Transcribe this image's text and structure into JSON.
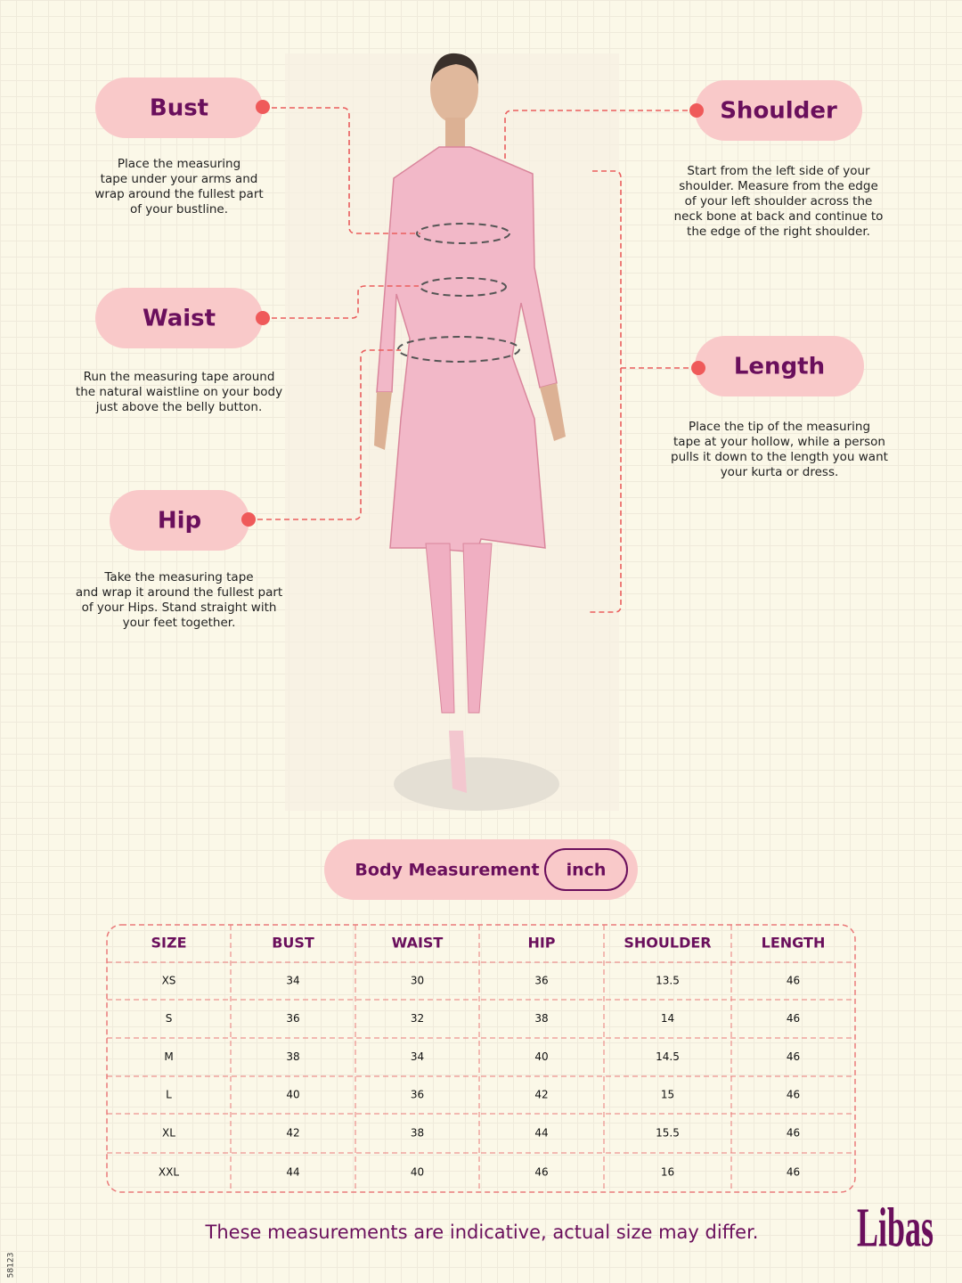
{
  "guides": [
    {
      "label": "Bust",
      "description": [
        "Place the measuring",
        "tape under your arms and",
        "wrap around the fullest part",
        "of your bustline."
      ]
    },
    {
      "label": "Waist",
      "description": [
        "Run the measuring tape around",
        "the natural waistline on your body",
        "just above the belly button."
      ]
    },
    {
      "label": "Hip",
      "description": [
        "Take the measuring tape",
        "and wrap it around the fullest part",
        "of your Hips. Stand straight with",
        "your feet together."
      ]
    },
    {
      "label": "Shoulder",
      "description": [
        "Start from the left side of your",
        "shoulder. Measure from the edge",
        "of your left shoulder across the",
        "neck bone at back and continue to",
        "the edge of the right shoulder."
      ]
    },
    {
      "label": "Length",
      "description": [
        "Place the tip of the measuring",
        "tape at your hollow, while a person",
        "pulls it down to the length you want",
        "your kurta or dress."
      ]
    }
  ],
  "table": {
    "title": "Body Measurement",
    "unit": "inch",
    "header": [
      "SIZE",
      "BUST",
      "WAIST",
      "HIP",
      "SHOULDER",
      "LENGTH"
    ],
    "rows": [
      [
        "XS",
        "34",
        "30",
        "36",
        "13.5",
        "46"
      ],
      [
        "S",
        "36",
        "32",
        "38",
        "14",
        "46"
      ],
      [
        "M",
        "38",
        "34",
        "40",
        "14.5",
        "46"
      ],
      [
        "L",
        "40",
        "36",
        "42",
        "15",
        "46"
      ],
      [
        "XL",
        "42",
        "38",
        "44",
        "15.5",
        "46"
      ],
      [
        "XXL",
        "44",
        "40",
        "46",
        "16",
        "46"
      ]
    ]
  },
  "footer": {
    "note": "These measurements are indicative, actual size may differ.",
    "brand": "Libas",
    "code": "58123"
  }
}
